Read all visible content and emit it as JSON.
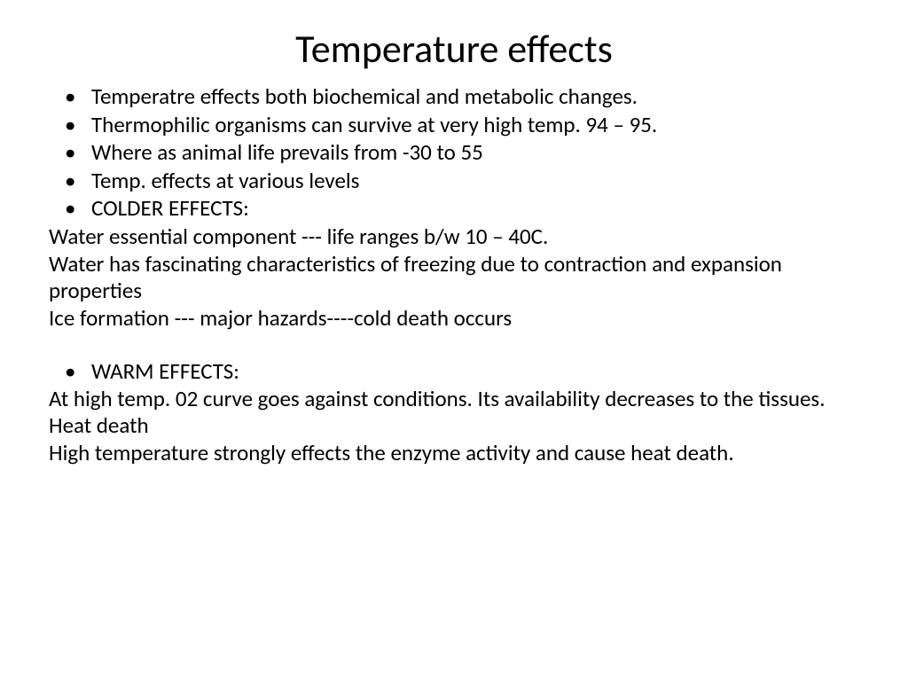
{
  "slide": {
    "title": "Temperature effects",
    "title_fontsize": 44,
    "body_fontsize": 25,
    "text_color": "#000000",
    "background_color": "#ffffff",
    "font_family": "Calibri",
    "bullets1": [
      "Temperatre effects both biochemical and metabolic changes.",
      "Thermophilic organisms can survive at very high temp. 94 – 95.",
      "Where as animal life prevails from -30 to 55",
      "Temp. effects at various levels",
      "COLDER EFFECTS:"
    ],
    "paras1": [
      "Water essential component --- life ranges b/w 10 – 40C.",
      "Water has fascinating characteristics of freezing due to contraction and expansion properties",
      "Ice formation --- major hazards----cold death occurs"
    ],
    "bullets2": [
      "WARM EFFECTS:"
    ],
    "paras2": [
      "At high temp. 02 curve goes against conditions. Its availability decreases to the tissues. Heat death",
      "High temperature strongly effects the enzyme activity and cause heat death."
    ]
  }
}
